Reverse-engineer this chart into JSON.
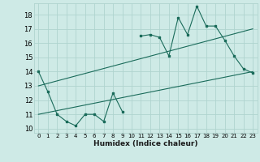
{
  "xlabel": "Humidex (Indice chaleur)",
  "background_color": "#ceeae6",
  "grid_color": "#afd4cf",
  "line_color": "#1a6b5a",
  "xlim": [
    -0.5,
    23.5
  ],
  "ylim": [
    9.7,
    18.8
  ],
  "yticks": [
    10,
    11,
    12,
    13,
    14,
    15,
    16,
    17,
    18
  ],
  "xticks": [
    0,
    1,
    2,
    3,
    4,
    5,
    6,
    7,
    8,
    9,
    10,
    11,
    12,
    13,
    14,
    15,
    16,
    17,
    18,
    19,
    20,
    21,
    22,
    23
  ],
  "line1_x": [
    0,
    1,
    2,
    3,
    4,
    5,
    6,
    7,
    8,
    9,
    11,
    12,
    13,
    14,
    15,
    16,
    17,
    18,
    19,
    20,
    21,
    22,
    23
  ],
  "line1_y": [
    14.0,
    12.6,
    11.0,
    10.5,
    10.2,
    11.0,
    11.0,
    10.5,
    12.5,
    11.2,
    16.5,
    16.6,
    16.4,
    15.1,
    17.8,
    16.6,
    18.6,
    17.2,
    17.2,
    16.2,
    15.1,
    14.2,
    13.9
  ],
  "line2_x": [
    0,
    23
  ],
  "line2_y": [
    13.0,
    17.0
  ],
  "line3_x": [
    0,
    23
  ],
  "line3_y": [
    11.0,
    14.0
  ]
}
